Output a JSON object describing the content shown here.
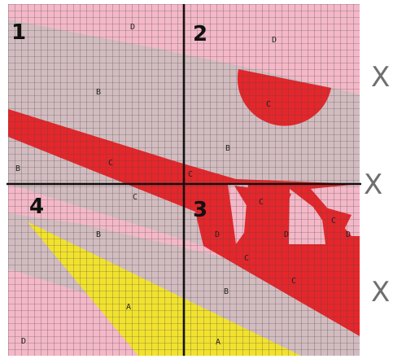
{
  "colors": {
    "pink": "#f4b8c8",
    "grey": "#d2bcc0",
    "red": "#e5262b",
    "yellow": "#f2e22e",
    "grid_line": "#4a4a4a",
    "axis": "#111111"
  },
  "quadrants": [
    "1",
    "2",
    "3",
    "4"
  ],
  "region_labels": [
    "D",
    "D",
    "B",
    "C",
    "B",
    "B",
    "C",
    "C",
    "C",
    "C",
    "C",
    "C",
    "D",
    "D",
    "D",
    "B",
    "C",
    "B",
    "A",
    "A",
    "D"
  ],
  "side_marks": [
    "X",
    "X",
    "X"
  ]
}
